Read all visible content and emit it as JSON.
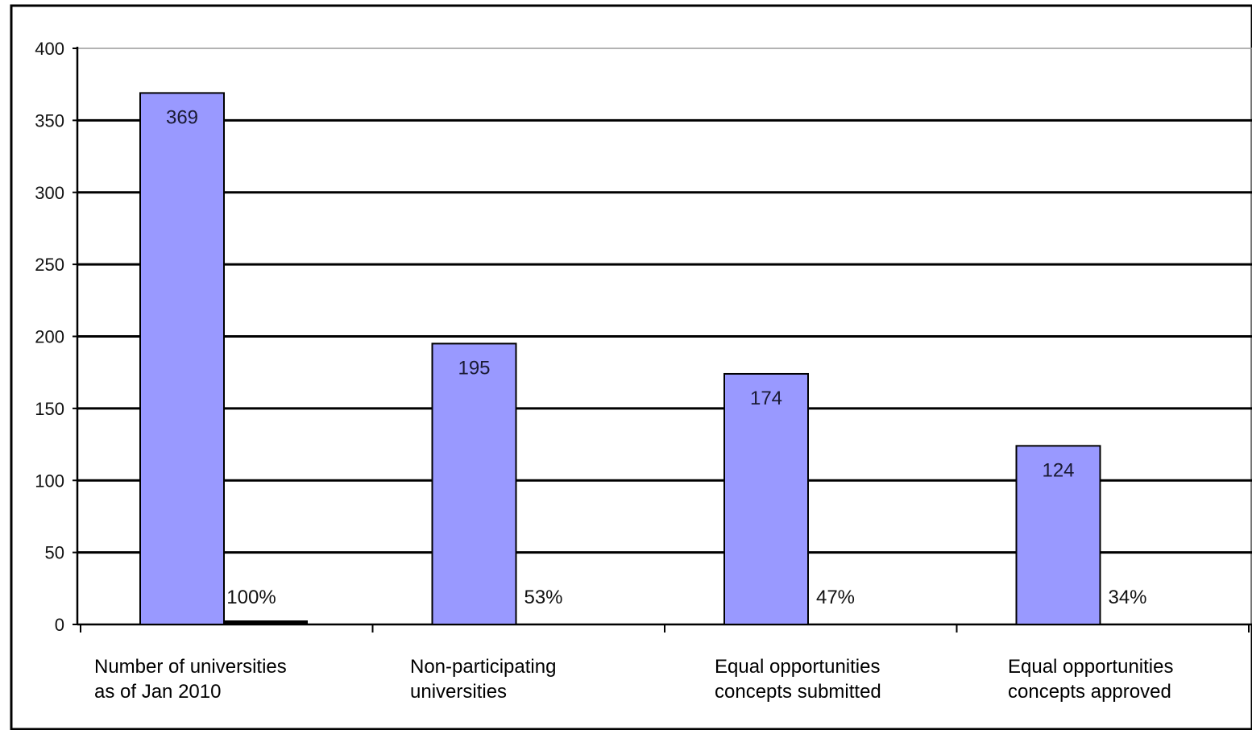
{
  "chart_data": {
    "type": "bar",
    "title": "",
    "xlabel": "",
    "ylabel": "",
    "ylim": [
      0,
      400
    ],
    "yticks": [
      0,
      50,
      100,
      150,
      200,
      250,
      300,
      350,
      400
    ],
    "grid": true,
    "categories": [
      "Number of universities\nas of Jan 2010",
      "Non-participating\nuniversities",
      "Equal opportunities\nconcepts submitted",
      "Equal opportunities\nconcepts approved"
    ],
    "series": [
      {
        "values": [
          369,
          195,
          174,
          124
        ],
        "color": "#9999ff",
        "data_labels": [
          "369",
          "195",
          "174",
          "124"
        ]
      },
      {
        "values": [
          1,
          0,
          0,
          0
        ],
        "color": "#000000",
        "data_labels": [
          "100%",
          "53%",
          "47%",
          "34%"
        ]
      }
    ]
  }
}
